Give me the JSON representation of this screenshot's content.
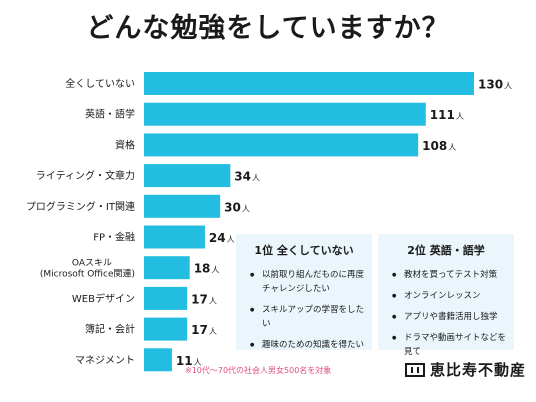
{
  "title": "どんな勉強をしていますか？",
  "chart_data": {
    "type": "bar",
    "orientation": "horizontal",
    "title": "どんな勉強をしていますか？",
    "categories": [
      "全くしていない",
      "英語・語学",
      "資格",
      "ライティング・文章力",
      "プログラミング・IT関連",
      "FP・金融",
      "OAスキル\n(Microsoft Office関連)",
      "WEBデザイン",
      "簿記・会計",
      "マネジメント"
    ],
    "values": [
      130,
      111,
      108,
      34,
      30,
      24,
      18,
      17,
      17,
      11
    ],
    "value_unit": "人",
    "xlim": [
      0,
      130
    ],
    "bar_color": "#22bde0",
    "grid": false,
    "legend": "none"
  },
  "panels": [
    {
      "title": "1位 全くしていない",
      "items": [
        "以前取り組んだものに再度チャレンジしたい",
        "スキルアップの学習をしたい",
        "趣味のための知識を得たい"
      ]
    },
    {
      "title": "2位 英語・語学",
      "items": [
        "教材を買ってテスト対策",
        "オンラインレッスン",
        "アプリや書籍活用し独学",
        "ドラマや動画サイトなどを見て"
      ]
    }
  ],
  "note": "※10代〜70代の社会人男女500名を対象",
  "logo": {
    "text": "恵比寿不動産",
    "icon": "building-icon"
  }
}
